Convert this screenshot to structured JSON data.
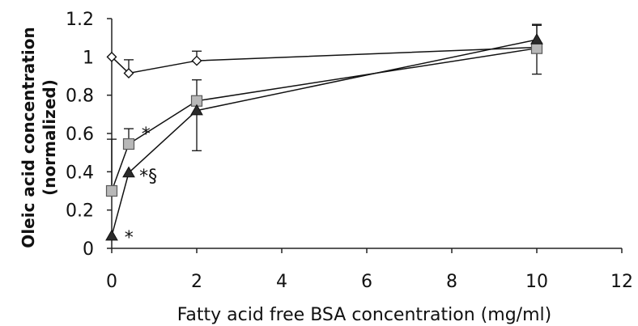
{
  "chart_data": {
    "type": "line",
    "xlabel": "Fatty acid free BSA concentration (mg/ml)",
    "ylabel_line1": "Oleic acid concentration",
    "ylabel_line2": "(normalized)",
    "xlim": [
      0,
      12
    ],
    "ylim": [
      0,
      1.2
    ],
    "x_ticks": [
      0,
      2,
      4,
      6,
      8,
      10,
      12
    ],
    "y_ticks": [
      0,
      0.2,
      0.4,
      0.6,
      0.8,
      1,
      1.2
    ],
    "x_tick_labels": [
      "0",
      "2",
      "4",
      "6",
      "8",
      "10",
      "12"
    ],
    "y_tick_labels": [
      "0",
      "0.2",
      "0.4",
      "0.6",
      "0.8",
      "1",
      "1.2"
    ],
    "grid": false,
    "series": [
      {
        "marker": "diamond-open",
        "x": [
          0,
          0.4,
          2,
          10
        ],
        "y": [
          1.0,
          0.915,
          0.98,
          1.05
        ],
        "err_up": [
          0,
          0.07,
          0.05,
          0.02
        ],
        "err_down": [
          0,
          0,
          0,
          0
        ]
      },
      {
        "marker": "square-gray",
        "x": [
          0,
          0.4,
          2,
          10
        ],
        "y": [
          0.3,
          0.545,
          0.77,
          1.045
        ],
        "err_up": [
          0.27,
          0.08,
          0.11,
          0.12
        ],
        "err_down": [
          0,
          0,
          0,
          0.135
        ]
      },
      {
        "marker": "triangle-dark",
        "x": [
          0,
          0.4,
          2,
          10
        ],
        "y": [
          0.065,
          0.395,
          0.72,
          1.09
        ],
        "err_up": [
          0,
          0,
          0,
          0.08
        ],
        "err_down": [
          0,
          0,
          0.21,
          0
        ]
      }
    ],
    "annotations": [
      {
        "text": "*",
        "x": 0.7,
        "y": 0.6
      },
      {
        "text": "*§",
        "x": 0.65,
        "y": 0.38
      },
      {
        "text": "*",
        "x": 0.3,
        "y": 0.06
      }
    ]
  }
}
